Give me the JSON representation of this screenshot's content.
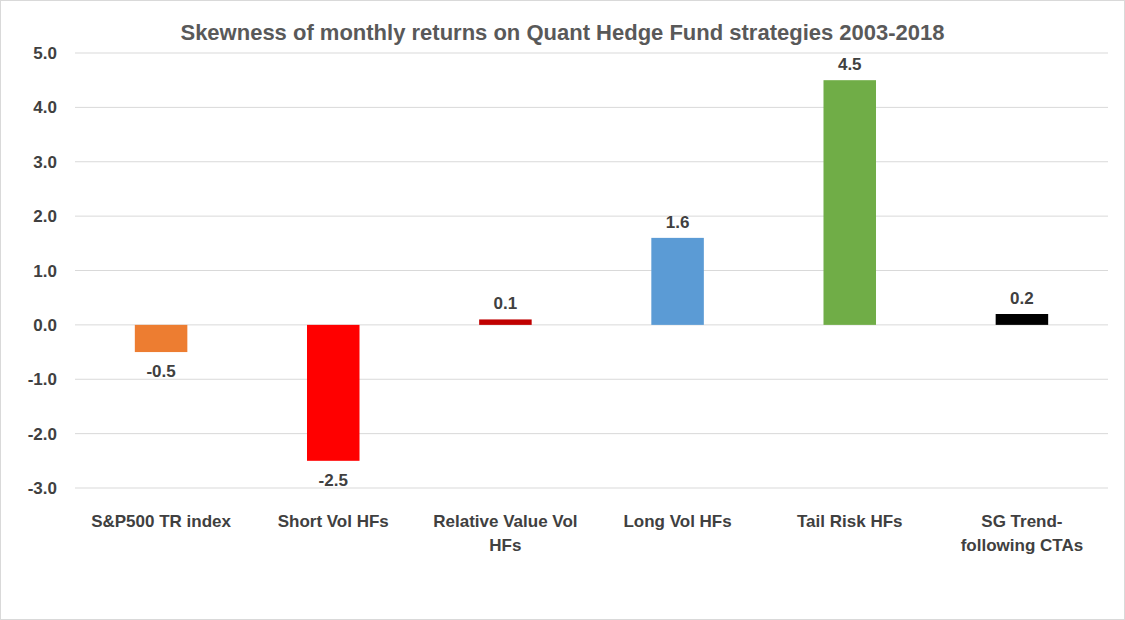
{
  "chart_data": {
    "type": "bar",
    "title": "Skewness of monthly returns on Quant Hedge Fund strategies 2003-2018",
    "categories": [
      "S&P500 TR index",
      "Short Vol HFs",
      "Relative Value Vol HFs",
      "Long Vol HFs",
      "Tail Risk HFs",
      "SG Trend-following CTAs"
    ],
    "values": [
      -0.5,
      -2.5,
      0.1,
      1.6,
      4.5,
      0.2
    ],
    "colors": [
      "#ed7d31",
      "#ff0000",
      "#c00000",
      "#5b9bd5",
      "#70ad47",
      "#000000"
    ],
    "ylim": [
      -3,
      5
    ],
    "yticks": [
      {
        "value": -3,
        "label": "-3.0"
      },
      {
        "value": -2,
        "label": "-2.0"
      },
      {
        "value": -1,
        "label": "-1.0"
      },
      {
        "value": 0,
        "label": "0.0"
      },
      {
        "value": 1,
        "label": "1.0"
      },
      {
        "value": 2,
        "label": "2.0"
      },
      {
        "value": 3,
        "label": "3.0"
      },
      {
        "value": 4,
        "label": "4.0"
      },
      {
        "value": 5,
        "label": "5.0"
      }
    ],
    "grid": true,
    "data_labels": true
  }
}
